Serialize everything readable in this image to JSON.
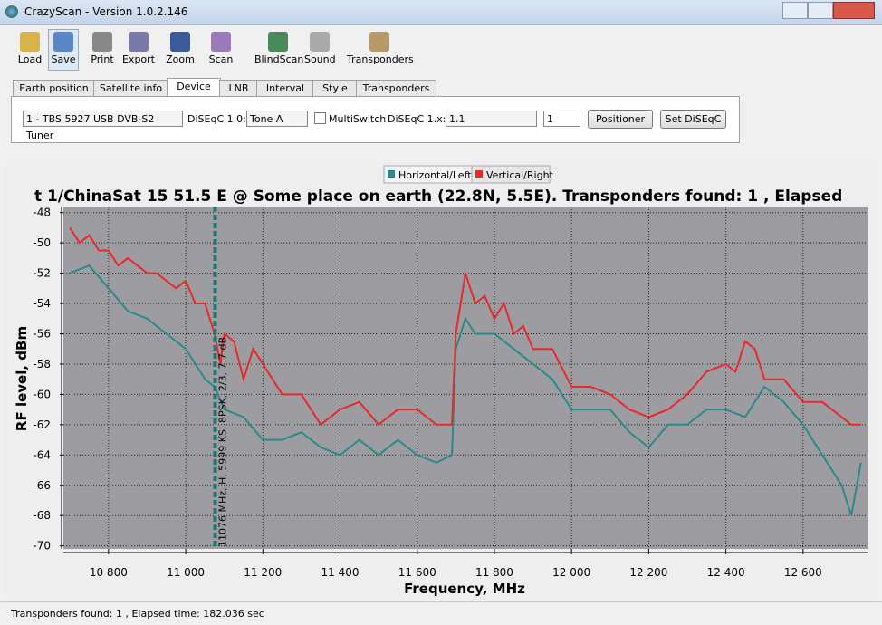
{
  "window": {
    "title": "CrazyScan - Version 1.0.2.146"
  },
  "toolbar": [
    "Load",
    "Save",
    "Print",
    "Export",
    "Zoom",
    "Scan",
    "BlindScan",
    "Sound",
    "Transponders"
  ],
  "tabs": [
    "Earth position",
    "Satellite info",
    "Device",
    "LNB",
    "Interval",
    "Style",
    "Transponders"
  ],
  "active_tab": 2,
  "device": {
    "tuner": "1 - TBS 5927 USB DVB-S2 Tuner",
    "diseqc10_label": "DiSEqC 1.0:",
    "diseqc10": "Tone A",
    "multiswitch": "MultiSwitch",
    "diseqc1x_label": "DiSEqC 1.x:",
    "diseqc1x": "1.1",
    "spin": "1",
    "buttons": [
      "Positioner",
      "Set DiSEqC"
    ]
  },
  "chart_data": {
    "type": "line",
    "title": "t 1/ChinaSat 15 51.5 E @ Some place on earth (22.8N, 5.5E). Transponders found: 1 , Elapsed",
    "x_label": "Frequency, MHz",
    "y_label": "RF level, dBm",
    "xlim": [
      10683,
      12767
    ],
    "ylim": [
      -70.2,
      -47.6
    ],
    "xticks": [
      {
        "value": 10800,
        "label": "10 800"
      },
      {
        "value": 11000,
        "label": "11 000"
      },
      {
        "value": 11200,
        "label": "11 200"
      },
      {
        "value": 11400,
        "label": "11 400"
      },
      {
        "value": 11600,
        "label": "11 600"
      },
      {
        "value": 11800,
        "label": "11 800"
      },
      {
        "value": 12000,
        "label": "12 000"
      },
      {
        "value": 12200,
        "label": "12 200"
      },
      {
        "value": 12400,
        "label": "12 400"
      },
      {
        "value": 12600,
        "label": "12 600"
      }
    ],
    "yticks": [
      -48,
      -50,
      -52,
      -54,
      -56,
      -58,
      -60,
      -62,
      -64,
      -66,
      -68,
      -70
    ],
    "grid": true,
    "legend": "top",
    "series": [
      {
        "name": "Horizontal/Left",
        "color": "#2a8a8a",
        "x": [
          10700,
          10750,
          10800,
          10850,
          10900,
          10950,
          11000,
          11050,
          11075,
          11100,
          11150,
          11200,
          11250,
          11300,
          11350,
          11400,
          11450,
          11500,
          11550,
          11600,
          11650,
          11690,
          11700,
          11725,
          11750,
          11800,
          11850,
          11900,
          11950,
          12000,
          12050,
          12100,
          12150,
          12200,
          12250,
          12300,
          12350,
          12400,
          12450,
          12500,
          12550,
          12600,
          12650,
          12700,
          12725,
          12750
        ],
        "values": [
          -52,
          -51.5,
          -53,
          -54.5,
          -55,
          -56,
          -57,
          -59,
          -59.5,
          -61,
          -61.5,
          -63,
          -63,
          -62.5,
          -63.5,
          -64,
          -63,
          -64,
          -63,
          -64,
          -64.5,
          -64,
          -57,
          -55,
          -56,
          -56,
          -57,
          -58,
          -59,
          -61,
          -61,
          -61,
          -62.5,
          -63.5,
          -62,
          -62,
          -61,
          -61,
          -61.5,
          -59.5,
          -60.5,
          -62,
          -64,
          -66,
          -68,
          -64.5
        ]
      },
      {
        "name": "Vertical/Right",
        "color": "#e8282a",
        "x": [
          10700,
          10725,
          10750,
          10775,
          10800,
          10825,
          10850,
          10875,
          10900,
          10925,
          10950,
          10975,
          11000,
          11025,
          11050,
          11075,
          11090,
          11100,
          11125,
          11150,
          11175,
          11200,
          11250,
          11300,
          11350,
          11400,
          11450,
          11500,
          11550,
          11600,
          11650,
          11690,
          11700,
          11725,
          11750,
          11775,
          11800,
          11825,
          11850,
          11875,
          11900,
          11950,
          12000,
          12050,
          12100,
          12150,
          12200,
          12250,
          12300,
          12350,
          12400,
          12425,
          12450,
          12475,
          12500,
          12550,
          12600,
          12650,
          12700,
          12725,
          12750
        ],
        "values": [
          -49,
          -50,
          -49.5,
          -50.5,
          -50.5,
          -51.5,
          -51,
          -51.5,
          -52,
          -52,
          -52.5,
          -53,
          -52.5,
          -54,
          -54,
          -56,
          -58,
          -56,
          -56.5,
          -59,
          -57,
          -58,
          -60,
          -60,
          -62,
          -61,
          -60.5,
          -62,
          -61,
          -61,
          -62,
          -62,
          -56,
          -52,
          -54,
          -53.5,
          -55,
          -54,
          -56,
          -55.5,
          -57,
          -57,
          -59.5,
          -59.5,
          -60,
          -61,
          -61.5,
          -61,
          -60,
          -58.5,
          -58,
          -58.5,
          -56.5,
          -57,
          -59,
          -59,
          -60.5,
          -60.5,
          -61.5,
          -62,
          -62
        ]
      }
    ],
    "marker": {
      "x": 11076,
      "label": "11076 MHz, H, 5999 KS, 8PSK, 2/3, 7.7 dB"
    }
  },
  "status": "Transponders found: 1 , Elapsed time: 182.036 sec"
}
